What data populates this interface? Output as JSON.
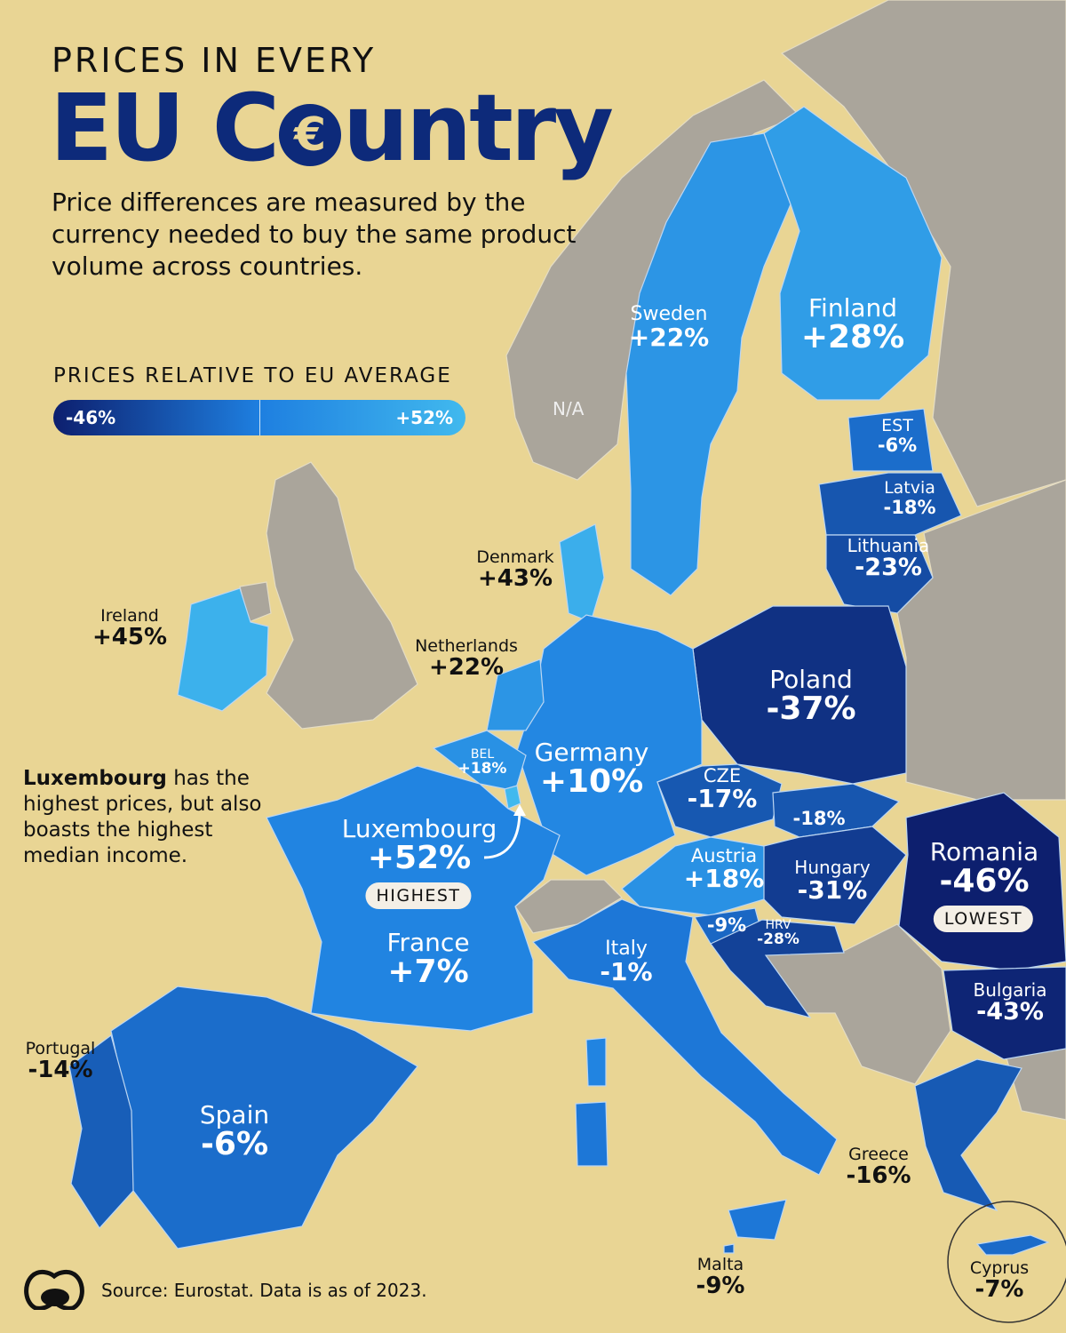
{
  "header": {
    "kicker": "PRICES IN EVERY",
    "title_pre": "EU C",
    "title_post": "untry",
    "title_symbol": "€",
    "subtitle": "Price differences are measured by the currency needed to buy the same product volume across countries."
  },
  "legend": {
    "title": "PRICES RELATIVE TO EU AVERAGE",
    "min_label": "-46%",
    "max_label": "+52%",
    "min": -46,
    "max": 52,
    "color_low": "#0d1f6e",
    "color_mid": "#1e7fe0",
    "color_high": "#41b9ee"
  },
  "na_label": "N/A",
  "countries": {
    "sweden": {
      "name": "Sweden",
      "label": "+22%",
      "value": 22
    },
    "finland": {
      "name": "Finland",
      "label": "+28%",
      "value": 28
    },
    "estonia": {
      "name": "EST",
      "label": "-6%",
      "value": -6
    },
    "latvia": {
      "name": "Latvia",
      "label": "-18%",
      "value": -18
    },
    "lithuania": {
      "name": "Lithuania",
      "label": "-23%",
      "value": -23
    },
    "denmark": {
      "name": "Denmark",
      "label": "+43%",
      "value": 43
    },
    "ireland": {
      "name": "Ireland",
      "label": "+45%",
      "value": 45
    },
    "netherlands": {
      "name": "Netherlands",
      "label": "+22%",
      "value": 22
    },
    "poland": {
      "name": "Poland",
      "label": "-37%",
      "value": -37
    },
    "belgium": {
      "name": "BEL",
      "label": "+18%",
      "value": 18
    },
    "germany": {
      "name": "Germany",
      "label": "+10%",
      "value": 10
    },
    "czechia": {
      "name": "CZE",
      "label": "-17%",
      "value": -17
    },
    "slovakia": {
      "name": "",
      "label": "-18%",
      "value": -18
    },
    "luxembourg": {
      "name": "Luxembourg",
      "label": "+52%",
      "value": 52,
      "badge": "HIGHEST"
    },
    "austria": {
      "name": "Austria",
      "label": "+18%",
      "value": 18
    },
    "hungary": {
      "name": "Hungary",
      "label": "-31%",
      "value": -31
    },
    "romania": {
      "name": "Romania",
      "label": "-46%",
      "value": -46,
      "badge": "LOWEST"
    },
    "slovenia": {
      "name": "",
      "label": "-9%",
      "value": -9
    },
    "croatia": {
      "name": "HRV",
      "label": "-28%",
      "value": -28
    },
    "france": {
      "name": "France",
      "label": "+7%",
      "value": 7
    },
    "italy": {
      "name": "Italy",
      "label": "-1%",
      "value": -1
    },
    "bulgaria": {
      "name": "Bulgaria",
      "label": "-43%",
      "value": -43
    },
    "portugal": {
      "name": "Portugal",
      "label": "-14%",
      "value": -14
    },
    "spain": {
      "name": "Spain",
      "label": "-6%",
      "value": -6
    },
    "greece": {
      "name": "Greece",
      "label": "-16%",
      "value": -16
    },
    "malta": {
      "name": "Malta",
      "label": "-9%",
      "value": -9
    },
    "cyprus": {
      "name": "Cyprus",
      "label": "-7%",
      "value": -7
    }
  },
  "note": {
    "bold": "Luxembourg",
    "rest": " has the highest prices, but also boasts the highest median income."
  },
  "footer": {
    "source": "Source: Eurostat. Data is as of 2023."
  }
}
